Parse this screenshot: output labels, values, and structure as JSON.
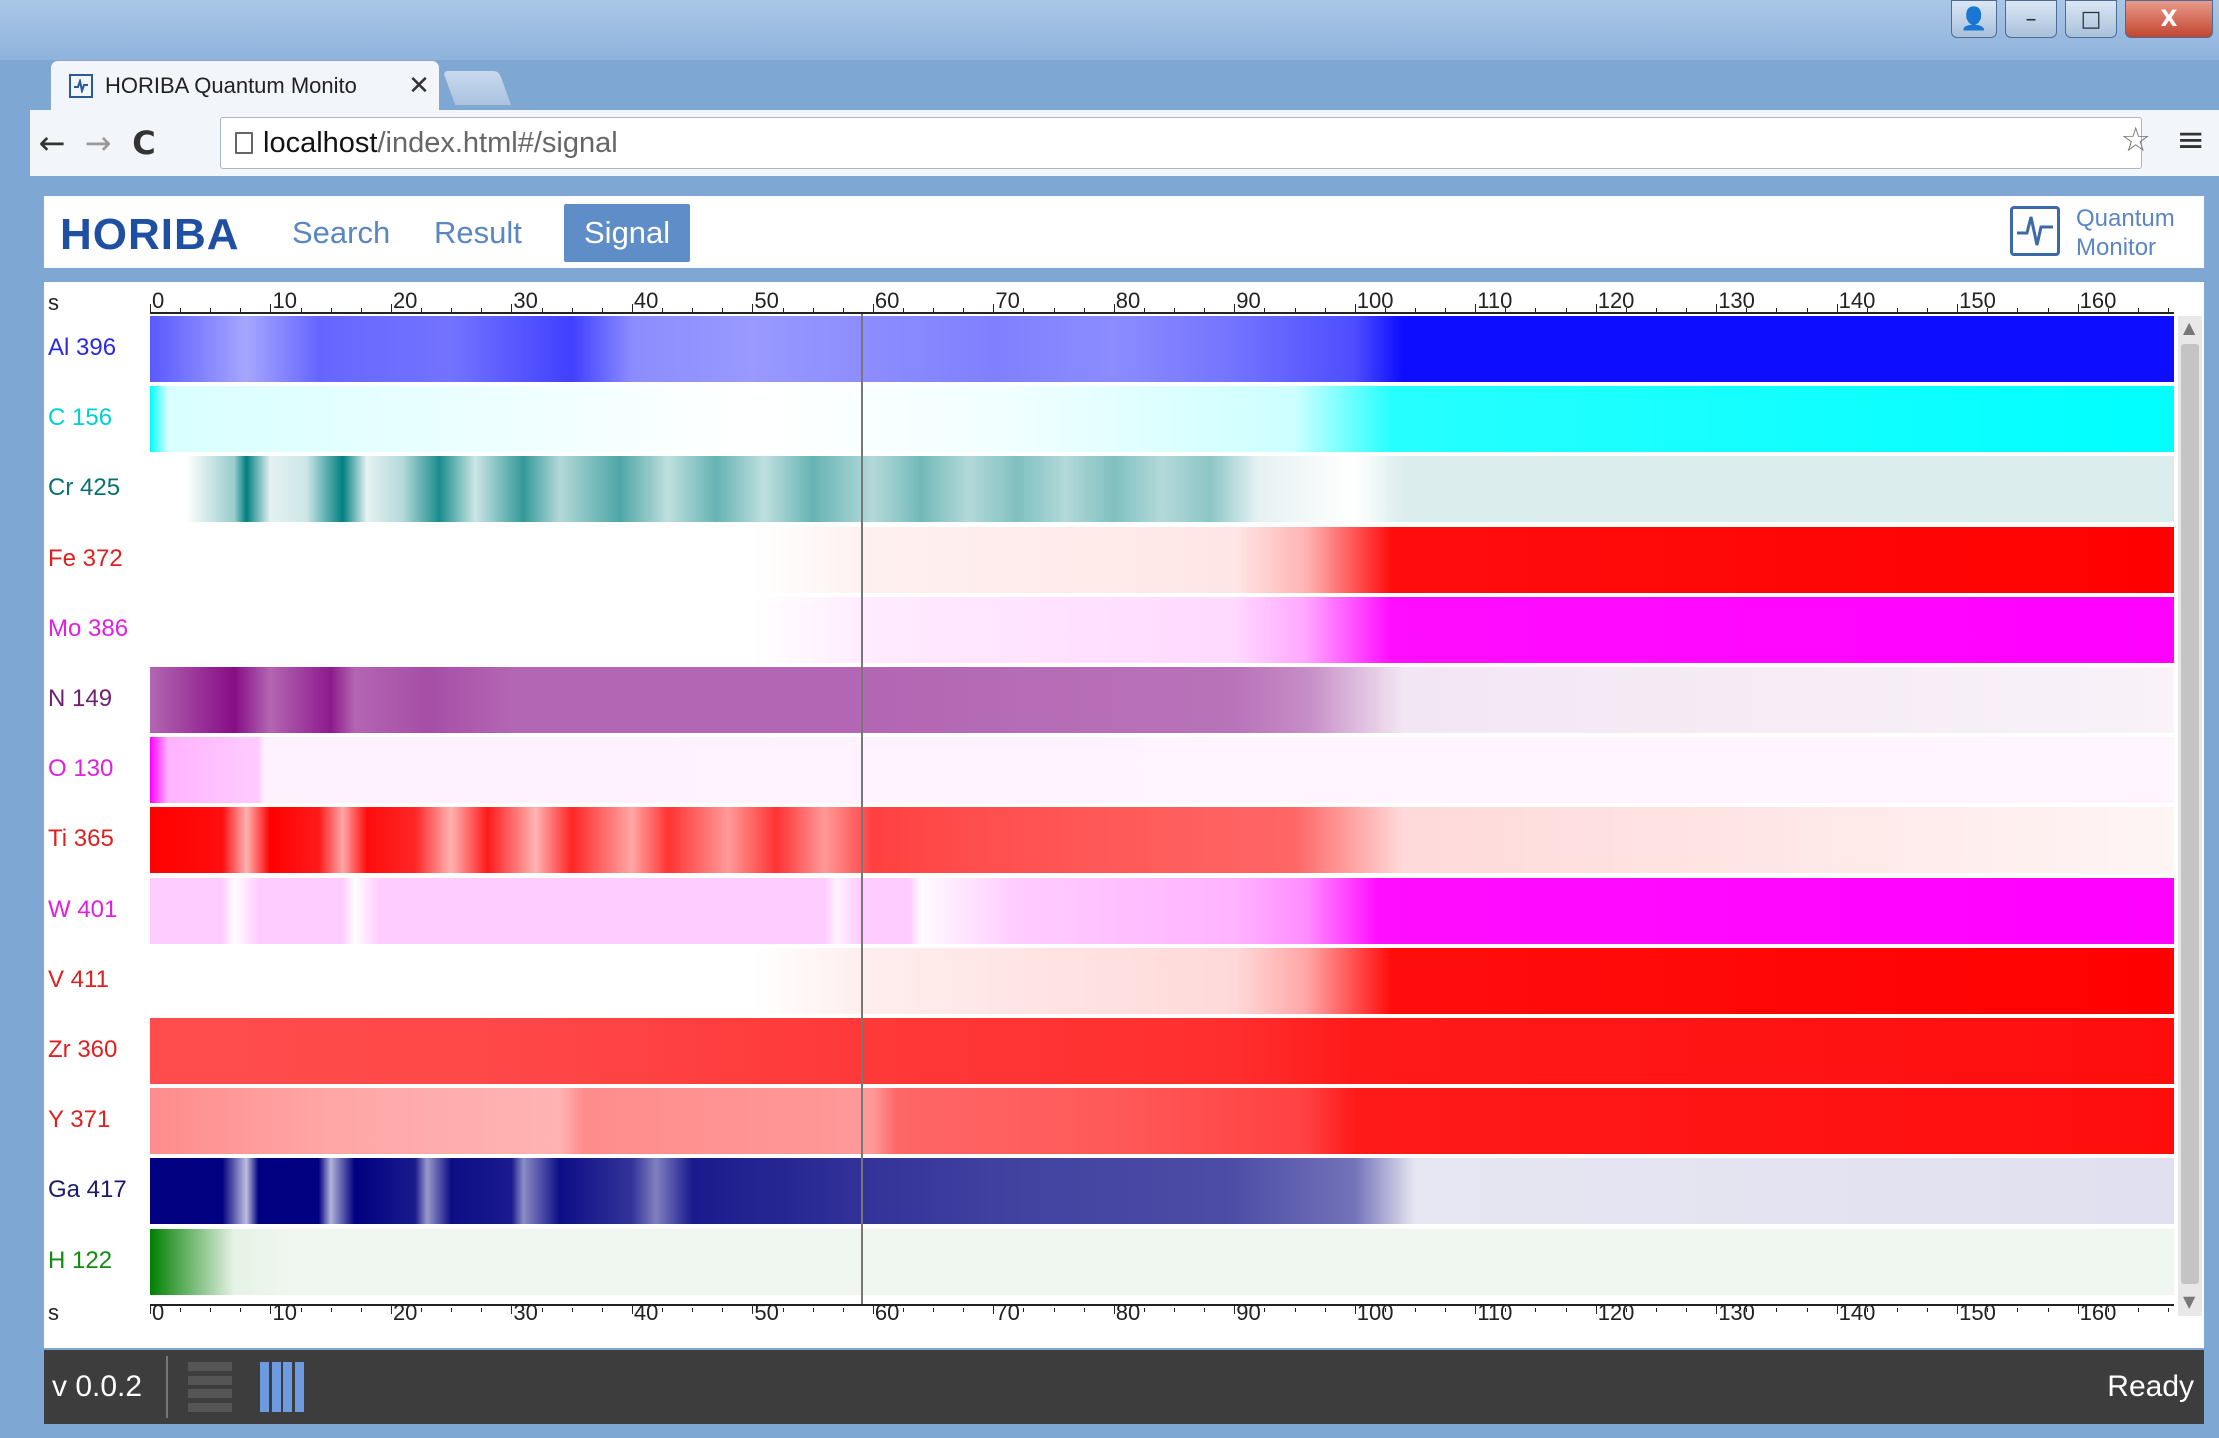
{
  "browser": {
    "tab_title": "HORIBA Quantum Monito",
    "tab_close": "✕",
    "url_host": "localhost",
    "url_path": "/index.html#/signal",
    "back": "←",
    "forward": "→",
    "reload": "C",
    "star": "☆",
    "menu": "≡",
    "window_controls": {
      "minimize": "–",
      "maximize": "□",
      "close": "X",
      "profile": "👤"
    }
  },
  "header": {
    "logo": "HORIBA",
    "nav": [
      {
        "label": "Search",
        "active": false
      },
      {
        "label": "Result",
        "active": false
      },
      {
        "label": "Signal",
        "active": true
      }
    ],
    "product_line1": "Quantum",
    "product_line2": "Monitor"
  },
  "chart_data": {
    "type": "heatmap",
    "x_unit": "s",
    "xlim": [
      0,
      168
    ],
    "x_ticks": [
      0,
      10,
      20,
      30,
      40,
      50,
      60,
      70,
      80,
      90,
      100,
      110,
      120,
      130,
      140,
      150,
      160
    ],
    "cursor_x": 59,
    "series": [
      {
        "name": "Al 396",
        "color": "#0000ff",
        "label_color": "#2a2ae0",
        "stops": [
          [
            0,
            0.65
          ],
          [
            8,
            0.35
          ],
          [
            14,
            0.6
          ],
          [
            25,
            0.55
          ],
          [
            35,
            0.75
          ],
          [
            40,
            0.45
          ],
          [
            50,
            0.4
          ],
          [
            60,
            0.45
          ],
          [
            70,
            0.5
          ],
          [
            80,
            0.45
          ],
          [
            90,
            0.55
          ],
          [
            100,
            0.7
          ],
          [
            104,
            0.95
          ],
          [
            168,
            0.95
          ]
        ]
      },
      {
        "name": "C 156",
        "color": "#00ffff",
        "label_color": "#00d0d0",
        "stops": [
          [
            0,
            1
          ],
          [
            1.5,
            0.15
          ],
          [
            20,
            0.1
          ],
          [
            50,
            0.0
          ],
          [
            70,
            0.05
          ],
          [
            95,
            0.2
          ],
          [
            103,
            0.85
          ],
          [
            168,
            1
          ]
        ]
      },
      {
        "name": "Cr 425",
        "color": "#008080",
        "label_color": "#0a7070",
        "stops": [
          [
            0,
            0
          ],
          [
            3,
            0
          ],
          [
            7,
            0.4
          ],
          [
            8,
            1
          ],
          [
            10,
            0.1
          ],
          [
            13,
            0.2
          ],
          [
            16,
            1
          ],
          [
            18,
            0.1
          ],
          [
            21,
            0.3
          ],
          [
            24,
            0.9
          ],
          [
            27,
            0.2
          ],
          [
            31,
            0.8
          ],
          [
            34,
            0.3
          ],
          [
            39,
            0.7
          ],
          [
            43,
            0.25
          ],
          [
            47,
            0.6
          ],
          [
            51,
            0.25
          ],
          [
            55,
            0.6
          ],
          [
            60,
            0.3
          ],
          [
            64,
            0.55
          ],
          [
            68,
            0.3
          ],
          [
            72,
            0.5
          ],
          [
            76,
            0.3
          ],
          [
            80,
            0.5
          ],
          [
            84,
            0.3
          ],
          [
            88,
            0.45
          ],
          [
            92,
            0.1
          ],
          [
            100,
            0.0
          ],
          [
            104,
            0.14
          ],
          [
            168,
            0.14
          ]
        ]
      },
      {
        "name": "Fe 372",
        "color": "#ff0000",
        "label_color": "#e02020",
        "stops": [
          [
            0,
            0
          ],
          [
            50,
            0
          ],
          [
            60,
            0.06
          ],
          [
            90,
            0.1
          ],
          [
            96,
            0.3
          ],
          [
            103,
            0.95
          ],
          [
            168,
            1
          ]
        ]
      },
      {
        "name": "Mo 386",
        "color": "#ff00ff",
        "label_color": "#e020e0",
        "stops": [
          [
            0,
            0
          ],
          [
            50,
            0
          ],
          [
            60,
            0.08
          ],
          [
            90,
            0.15
          ],
          [
            96,
            0.35
          ],
          [
            103,
            0.95
          ],
          [
            168,
            1
          ]
        ]
      },
      {
        "name": "N 149",
        "color": "#800080",
        "label_color": "#702070",
        "stops": [
          [
            0,
            0.6
          ],
          [
            7,
            0.95
          ],
          [
            10,
            0.6
          ],
          [
            15,
            0.9
          ],
          [
            17,
            0.6
          ],
          [
            23,
            0.7
          ],
          [
            30,
            0.6
          ],
          [
            60,
            0.6
          ],
          [
            90,
            0.55
          ],
          [
            96,
            0.45
          ],
          [
            104,
            0.1
          ],
          [
            168,
            0.05
          ]
        ]
      },
      {
        "name": "O 130",
        "color": "#ff00ff",
        "label_color": "#e020e0",
        "stops": [
          [
            0,
            1
          ],
          [
            1.5,
            0.3
          ],
          [
            9,
            0.2
          ],
          [
            9.5,
            0.05
          ],
          [
            14,
            0.05
          ],
          [
            168,
            0.04
          ]
        ]
      },
      {
        "name": "Ti 365",
        "color": "#ff0000",
        "label_color": "#e02020",
        "stops": [
          [
            0,
            1
          ],
          [
            6,
            0.95
          ],
          [
            8,
            0.3
          ],
          [
            10,
            1
          ],
          [
            14,
            0.9
          ],
          [
            16,
            0.35
          ],
          [
            18,
            0.95
          ],
          [
            22,
            0.85
          ],
          [
            25,
            0.3
          ],
          [
            28,
            0.9
          ],
          [
            32,
            0.3
          ],
          [
            35,
            0.85
          ],
          [
            40,
            0.35
          ],
          [
            43,
            0.8
          ],
          [
            48,
            0.4
          ],
          [
            52,
            0.8
          ],
          [
            56,
            0.4
          ],
          [
            60,
            0.75
          ],
          [
            68,
            0.7
          ],
          [
            80,
            0.65
          ],
          [
            95,
            0.6
          ],
          [
            104,
            0.15
          ],
          [
            168,
            0.04
          ]
        ]
      },
      {
        "name": "W 401",
        "color": "#ff00ff",
        "label_color": "#e020e0",
        "stops": [
          [
            0,
            0.2
          ],
          [
            6,
            0.2
          ],
          [
            7,
            0
          ],
          [
            9,
            0.2
          ],
          [
            16,
            0.2
          ],
          [
            17,
            0
          ],
          [
            19,
            0.2
          ],
          [
            56,
            0.2
          ],
          [
            57,
            0.05
          ],
          [
            59,
            0.2
          ],
          [
            63,
            0.2
          ],
          [
            64,
            0.02
          ],
          [
            72,
            0.2
          ],
          [
            90,
            0.3
          ],
          [
            96,
            0.45
          ],
          [
            102,
            0.95
          ],
          [
            168,
            1
          ]
        ]
      },
      {
        "name": "V 411",
        "color": "#ff0000",
        "label_color": "#e02020",
        "stops": [
          [
            0,
            0
          ],
          [
            50,
            0
          ],
          [
            60,
            0.07
          ],
          [
            90,
            0.15
          ],
          [
            96,
            0.35
          ],
          [
            103,
            0.95
          ],
          [
            168,
            1
          ]
        ]
      },
      {
        "name": "Zr 360",
        "color": "#ff0000",
        "label_color": "#e02020",
        "stops": [
          [
            0,
            0.7
          ],
          [
            30,
            0.72
          ],
          [
            60,
            0.78
          ],
          [
            90,
            0.82
          ],
          [
            100,
            0.9
          ],
          [
            168,
            0.95
          ]
        ]
      },
      {
        "name": "Y 371",
        "color": "#ff0000",
        "label_color": "#e02020",
        "stops": [
          [
            0,
            0.45
          ],
          [
            15,
            0.35
          ],
          [
            34,
            0.3
          ],
          [
            36,
            0.45
          ],
          [
            60,
            0.4
          ],
          [
            62,
            0.6
          ],
          [
            80,
            0.65
          ],
          [
            96,
            0.75
          ],
          [
            100,
            0.9
          ],
          [
            168,
            0.95
          ]
        ]
      },
      {
        "name": "Ga 417",
        "color": "#000080",
        "label_color": "#1a1a70",
        "stops": [
          [
            0,
            1
          ],
          [
            6,
            1
          ],
          [
            8,
            0.25
          ],
          [
            9,
            1
          ],
          [
            14,
            1
          ],
          [
            15,
            0.3
          ],
          [
            17,
            1
          ],
          [
            22,
            0.9
          ],
          [
            23,
            0.4
          ],
          [
            25,
            0.95
          ],
          [
            30,
            0.9
          ],
          [
            31,
            0.45
          ],
          [
            34,
            0.95
          ],
          [
            40,
            0.8
          ],
          [
            42,
            0.5
          ],
          [
            45,
            0.9
          ],
          [
            60,
            0.8
          ],
          [
            70,
            0.75
          ],
          [
            90,
            0.7
          ],
          [
            100,
            0.55
          ],
          [
            105,
            0.1
          ],
          [
            168,
            0.12
          ]
        ]
      },
      {
        "name": "H 122",
        "color": "#008000",
        "label_color": "#138a13",
        "stops": [
          [
            0,
            1
          ],
          [
            1.5,
            0.8
          ],
          [
            7,
            0.1
          ],
          [
            12,
            0.06
          ],
          [
            168,
            0.06
          ]
        ]
      }
    ]
  },
  "status": {
    "version": "v 0.0.2",
    "text": "Ready"
  }
}
